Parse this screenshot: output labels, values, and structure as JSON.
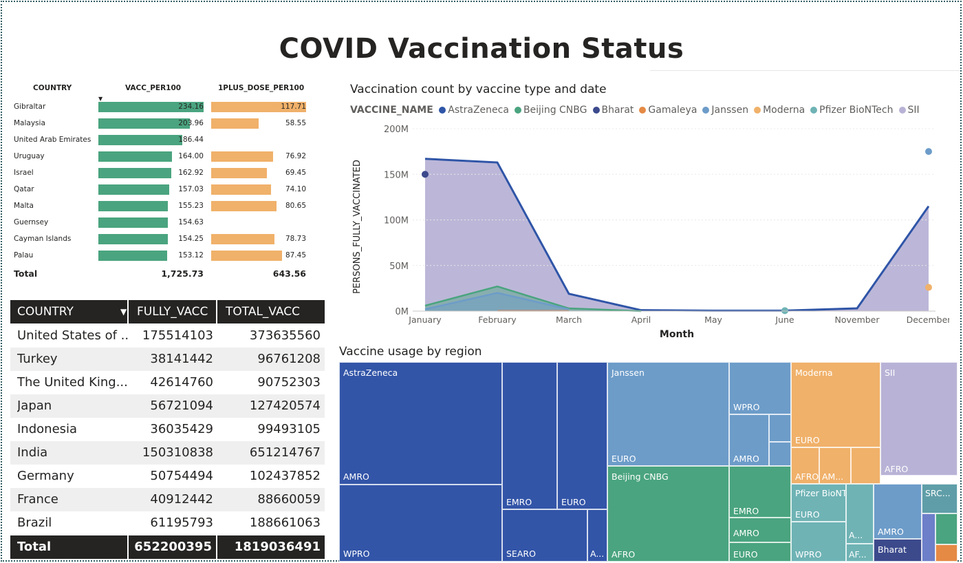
{
  "title": "COVID Vaccination Status",
  "bar_table": {
    "headers": {
      "country": "COUNTRY",
      "vacc": "VACC_PER100",
      "dose": "1PLUS_DOSE_PER100"
    },
    "rows": [
      {
        "country": "Gibraltar",
        "vacc": 234.16,
        "vacc_label": "234.16",
        "dose": 117.71,
        "dose_label": "117.71"
      },
      {
        "country": "Malaysia",
        "vacc": 203.96,
        "vacc_label": "203.96",
        "dose": 58.55,
        "dose_label": "58.55"
      },
      {
        "country": "United Arab Emirates",
        "vacc": 186.44,
        "vacc_label": "186.44",
        "dose": null,
        "dose_label": ""
      },
      {
        "country": "Uruguay",
        "vacc": 164.0,
        "vacc_label": "164.00",
        "dose": 76.92,
        "dose_label": "76.92"
      },
      {
        "country": "Israel",
        "vacc": 162.92,
        "vacc_label": "162.92",
        "dose": 69.45,
        "dose_label": "69.45"
      },
      {
        "country": "Qatar",
        "vacc": 157.03,
        "vacc_label": "157.03",
        "dose": 74.1,
        "dose_label": "74.10"
      },
      {
        "country": "Malta",
        "vacc": 155.23,
        "vacc_label": "155.23",
        "dose": 80.65,
        "dose_label": "80.65"
      },
      {
        "country": "Guernsey",
        "vacc": 154.63,
        "vacc_label": "154.63",
        "dose": null,
        "dose_label": ""
      },
      {
        "country": "Cayman Islands",
        "vacc": 154.25,
        "vacc_label": "154.25",
        "dose": 78.73,
        "dose_label": "78.73"
      },
      {
        "country": "Palau",
        "vacc": 153.12,
        "vacc_label": "153.12",
        "dose": 87.45,
        "dose_label": "87.45"
      }
    ],
    "total_label": "Total",
    "total_vacc": "1,725.73",
    "total_dose": "643.56",
    "colors": {
      "vacc": "#4aa47f",
      "dose": "#f0b16a"
    }
  },
  "data_table": {
    "headers": {
      "country": "COUNTRY",
      "fully": "FULLY_VACC",
      "total": "TOTAL_VACC"
    },
    "rows": [
      {
        "country": "United States of ...",
        "fully": "175514103",
        "total": "373635560"
      },
      {
        "country": "Turkey",
        "fully": "38141442",
        "total": "96761208"
      },
      {
        "country": "The United King...",
        "fully": "42614760",
        "total": "90752303"
      },
      {
        "country": "Japan",
        "fully": "56721094",
        "total": "127420574"
      },
      {
        "country": "Indonesia",
        "fully": "36035429",
        "total": "99493105"
      },
      {
        "country": "India",
        "fully": "150310838",
        "total": "651214767"
      },
      {
        "country": "Germany",
        "fully": "50754494",
        "total": "102437852"
      },
      {
        "country": "France",
        "fully": "40912442",
        "total": "88660059"
      },
      {
        "country": "Brazil",
        "fully": "61195793",
        "total": "188661063"
      }
    ],
    "total_label": "Total",
    "total_fully": "652200395",
    "total_total": "1819036491"
  },
  "chart_data": {
    "type": "area",
    "title": "Vaccination count by vaccine type and date",
    "xlabel": "Month",
    "ylabel": "PERSONS_FULLY_VACCINATED",
    "legend_title": "VACCINE_NAME",
    "legend_position": "top-left",
    "categories": [
      "January",
      "February",
      "March",
      "April",
      "May",
      "June",
      "November",
      "December"
    ],
    "ylim": [
      0,
      200000000
    ],
    "yticks": [
      {
        "value": 0,
        "label": "0M"
      },
      {
        "value": 50000000,
        "label": "50M"
      },
      {
        "value": 100000000,
        "label": "100M"
      },
      {
        "value": 150000000,
        "label": "150M"
      },
      {
        "value": 200000000,
        "label": "200M"
      }
    ],
    "series": [
      {
        "name": "AstraZeneca",
        "color": "#2f55a7",
        "kind": "line",
        "values": [
          167000000,
          163000000,
          19000000,
          1000000,
          500000,
          500000,
          3000000,
          115000000
        ]
      },
      {
        "name": "Beijing CNBG",
        "color": "#4aa47f",
        "kind": "line",
        "values": [
          6000000,
          27000000,
          3000000,
          0,
          null,
          null,
          null,
          null
        ]
      },
      {
        "name": "Bharat",
        "color": "#3c4a8c",
        "kind": "point",
        "values": [
          150000000,
          null,
          null,
          null,
          null,
          null,
          null,
          null
        ]
      },
      {
        "name": "Gamaleya",
        "color": "#e58a45",
        "kind": "line",
        "values": [
          null,
          500000,
          500000,
          null,
          null,
          null,
          null,
          null
        ]
      },
      {
        "name": "Janssen",
        "color": "#6d9cc9",
        "kind": "line",
        "values": [
          2000000,
          20000000,
          2000000,
          null,
          null,
          null,
          null,
          175000000
        ]
      },
      {
        "name": "Moderna",
        "color": "#f0b16a",
        "kind": "point",
        "values": [
          null,
          null,
          null,
          null,
          null,
          null,
          null,
          26000000
        ]
      },
      {
        "name": "Pfizer BioNTech",
        "color": "#6fb3b5",
        "kind": "line",
        "values": [
          null,
          null,
          null,
          null,
          null,
          500000,
          null,
          null
        ]
      },
      {
        "name": "SII",
        "color": "#b8b3d6",
        "kind": "area",
        "values": [
          167000000,
          163000000,
          19000000,
          1000000,
          500000,
          500000,
          3000000,
          115000000
        ]
      }
    ]
  },
  "treemap": {
    "title": "Vaccine usage by region",
    "groups": [
      {
        "name": "AstraZeneca",
        "color": "#3355a8"
      },
      {
        "name": "Janssen",
        "color": "#6d9cc9"
      },
      {
        "name": "Beijing CNBG",
        "color": "#4aa47f"
      },
      {
        "name": "Moderna",
        "color": "#f0b16a"
      },
      {
        "name": "SII",
        "color": "#b8b3d6"
      },
      {
        "name": "Pfizer BioNTech",
        "color": "#6fb3b5"
      },
      {
        "name": "Bharat",
        "color": "#3c4a8c"
      },
      {
        "name": "SRC...",
        "color": "#5f9ea8"
      }
    ],
    "region_labels": {
      "az_amro": "AMRO",
      "az_wpro": "WPRO",
      "az_emro": "EMRO",
      "az_euro": "EURO",
      "az_searo": "SEARO",
      "az_a": "A...",
      "ja_euro": "EURO",
      "ja_wpro": "WPRO",
      "ja_amro": "AMRO",
      "bc_afro": "AFRO",
      "bc_emro": "EMRO",
      "bc_amro": "AMRO",
      "bc_euro": "EURO",
      "mo_euro": "EURO",
      "mo_afro": "AFRO",
      "mo_am": "AM...",
      "sii_afro": "AFRO",
      "pf_euro": "EURO",
      "pf_wpro": "WPRO",
      "pf_a": "A...",
      "pf_af": "AF...",
      "ja2_amro": "AMRO"
    }
  }
}
